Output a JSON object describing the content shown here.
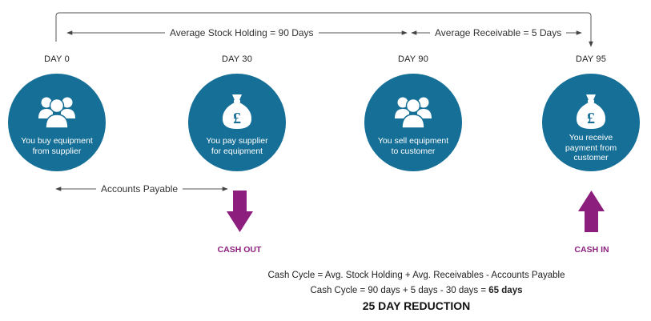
{
  "timeline": {
    "stock_holding_label": "Average Stock Holding = 90 Days",
    "receivable_label": "Average Receivable = 5 Days",
    "payable_label": "Accounts Payable"
  },
  "stages": [
    {
      "day": "DAY 0",
      "caption_line1": "You buy equipment",
      "caption_line2": "from supplier",
      "caption_line3": "",
      "icon": "people-group-icon"
    },
    {
      "day": "DAY 30",
      "caption_line1": "You pay supplier",
      "caption_line2": "for equipment",
      "caption_line3": "",
      "icon": "money-bag-pound-icon"
    },
    {
      "day": "DAY 90",
      "caption_line1": "You sell equipment",
      "caption_line2": "to customer",
      "caption_line3": "",
      "icon": "people-group-icon"
    },
    {
      "day": "DAY 95",
      "caption_line1": "You receive",
      "caption_line2": "payment from",
      "caption_line3": "customer",
      "icon": "money-bag-pound-icon"
    }
  ],
  "cash_flow": {
    "out_label": "CASH OUT",
    "in_label": "CASH IN"
  },
  "formula": {
    "line1": "Cash Cycle = Avg. Stock Holding + Avg. Receivables - Accounts Payable",
    "line2_prefix": "Cash Cycle = 90 days + 5 days - 30 days = ",
    "line2_result": "65 days",
    "reduction": "25 DAY REDUCTION"
  },
  "colors": {
    "circle": "#156f97",
    "accent": "#8c1f7e",
    "line": "#555555"
  },
  "pound_symbol": "£"
}
